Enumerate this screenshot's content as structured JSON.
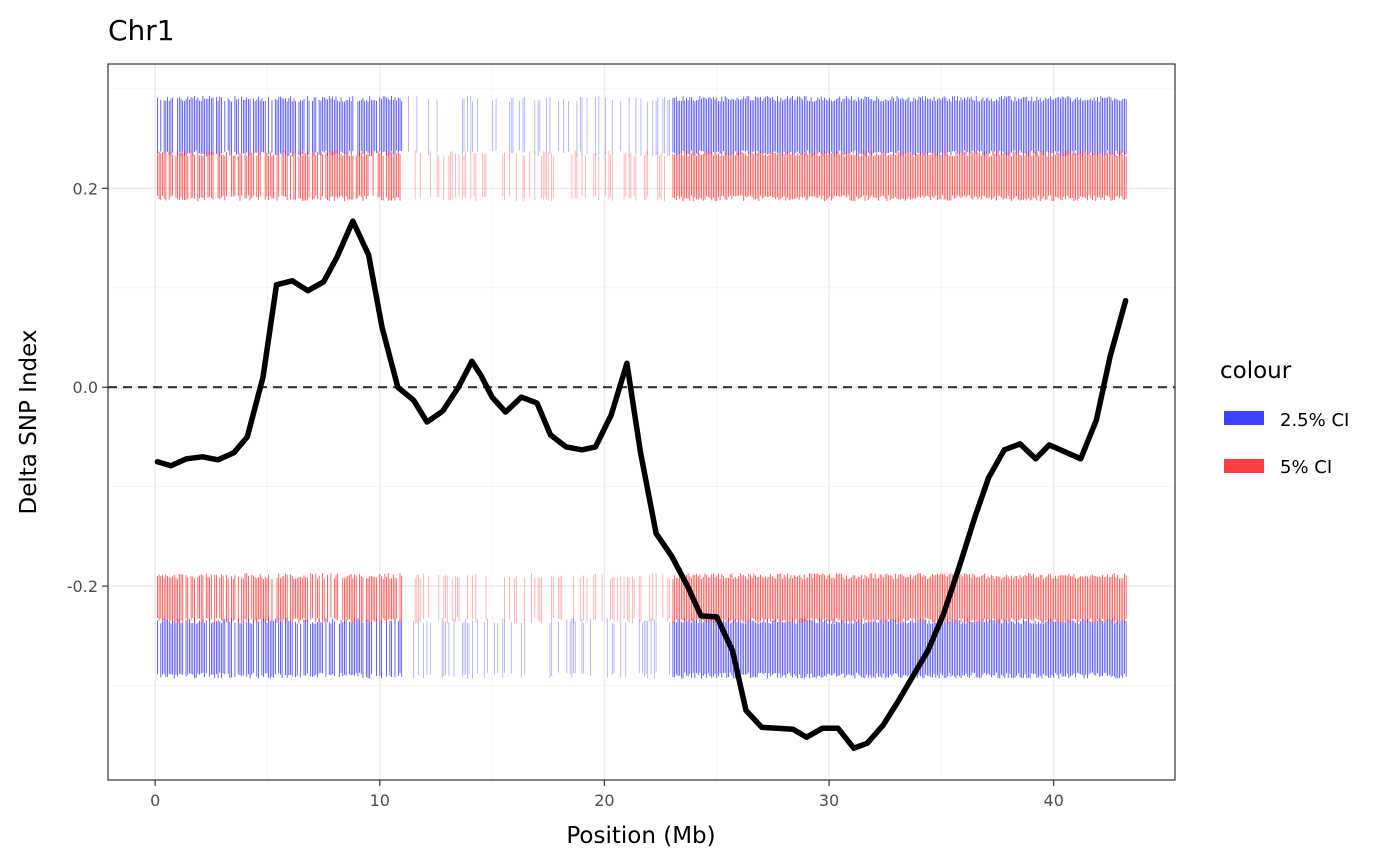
{
  "chart_data": {
    "type": "line",
    "title": "Chr1",
    "xlabel": "Position (Mb)",
    "ylabel": "Delta SNP Index",
    "xlim": [
      -2.1,
      45.4
    ],
    "ylim": [
      -0.395,
      0.325
    ],
    "x_ticks": [
      0,
      10,
      20,
      30,
      40
    ],
    "x_tick_labels": [
      "0",
      "10",
      "20",
      "30",
      "40"
    ],
    "y_ticks": [
      -0.2,
      0.0,
      0.2
    ],
    "y_tick_labels": [
      "-0.2",
      "0.0",
      "0.2"
    ],
    "grid": true,
    "reference_line": {
      "y": 0.0,
      "style": "dashed",
      "color": "#333333"
    },
    "legend": {
      "title": "colour",
      "position": "right",
      "entries": [
        {
          "label": "2.5% CI",
          "color": "#0000ff"
        },
        {
          "label": "5% CI",
          "color": "#ff0000"
        }
      ]
    },
    "ci_bands": [
      {
        "name": "2.5% CI",
        "color": "#0000ff",
        "upper": [
          0.235,
          0.29
        ],
        "lower": [
          -0.29,
          -0.235
        ]
      },
      {
        "name": "5% CI",
        "color": "#ff0000",
        "upper": [
          0.19,
          0.235
        ],
        "lower": [
          -0.235,
          -0.19
        ]
      }
    ],
    "series": [
      {
        "name": "Delta SNP Index",
        "color": "#000000",
        "x": [
          0.1,
          0.7,
          1.4,
          2.1,
          2.8,
          3.5,
          4.1,
          4.8,
          5.4,
          6.1,
          6.8,
          7.5,
          8.1,
          8.8,
          9.5,
          10.1,
          10.8,
          11.5,
          12.1,
          12.8,
          13.5,
          14.1,
          14.5,
          15.0,
          15.6,
          16.3,
          17.0,
          17.6,
          18.3,
          19.0,
          19.6,
          20.3,
          21.0,
          21.6,
          22.3,
          23.0,
          23.7,
          24.3,
          25.0,
          25.7,
          26.3,
          27.0,
          27.7,
          28.4,
          29.0,
          29.7,
          30.4,
          31.1,
          31.7,
          32.4,
          33.1,
          33.8,
          34.4,
          35.1,
          35.8,
          36.5,
          37.1,
          37.8,
          38.5,
          39.2,
          39.8,
          40.5,
          41.2,
          41.9,
          42.5,
          43.2
        ],
        "y": [
          -0.075,
          -0.079,
          -0.072,
          -0.07,
          -0.073,
          -0.066,
          -0.05,
          0.01,
          0.103,
          0.107,
          0.097,
          0.106,
          0.131,
          0.167,
          0.133,
          0.06,
          0.0,
          -0.013,
          -0.035,
          -0.024,
          0.0,
          0.026,
          0.012,
          -0.01,
          -0.025,
          -0.01,
          -0.016,
          -0.048,
          -0.06,
          -0.063,
          -0.06,
          -0.028,
          0.024,
          -0.065,
          -0.147,
          -0.17,
          -0.2,
          -0.23,
          -0.231,
          -0.265,
          -0.325,
          -0.342,
          -0.343,
          -0.344,
          -0.352,
          -0.343,
          -0.343,
          -0.363,
          -0.358,
          -0.34,
          -0.315,
          -0.288,
          -0.265,
          -0.228,
          -0.18,
          -0.13,
          -0.091,
          -0.063,
          -0.057,
          -0.072,
          -0.058,
          -0.065,
          -0.072,
          -0.033,
          0.03,
          0.087
        ]
      }
    ]
  }
}
